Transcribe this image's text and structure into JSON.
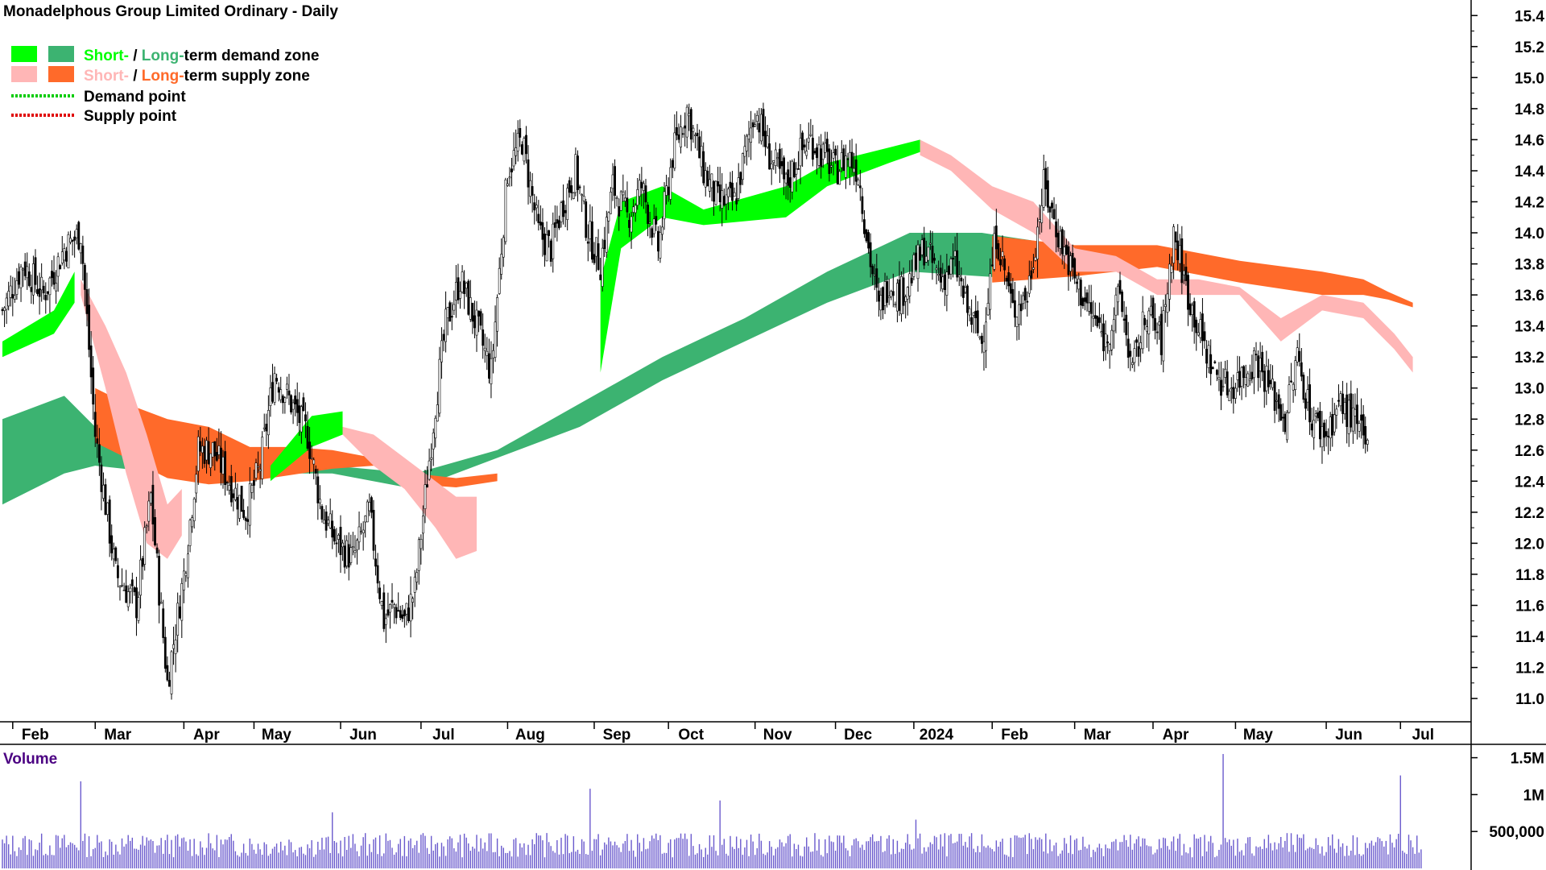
{
  "chart_data": {
    "type": "candlestick",
    "title": "Monadelphous Group Limited Ordinary - Daily",
    "y_axis": {
      "ylim": [
        10.85,
        15.5
      ],
      "ticks": [
        "15.4",
        "15.2",
        "15.0",
        "14.8",
        "14.6",
        "14.4",
        "14.2",
        "14.0",
        "13.8",
        "13.6",
        "13.4",
        "13.2",
        "13.0",
        "12.8",
        "12.6",
        "12.4",
        "12.2",
        "12.0",
        "11.8",
        "11.6",
        "11.4",
        "11.2",
        "11.0"
      ],
      "position": "right"
    },
    "x_axis": {
      "months": [
        "Feb",
        "Mar",
        "Apr",
        "May",
        "Jun",
        "Jul",
        "Aug",
        "Sep",
        "Oct",
        "Nov",
        "Dec",
        "2024",
        "Feb",
        "Mar",
        "Apr",
        "May",
        "Jun",
        "Jul"
      ],
      "month_days": [
        5,
        45,
        88,
        122,
        164,
        203,
        245,
        287,
        323,
        365,
        404,
        442,
        480,
        520,
        558,
        598,
        642,
        678
      ]
    },
    "legend": {
      "placement": "top-left",
      "short_word": "Short-",
      "slash": " / ",
      "long_word": "Long-",
      "demand_rest": "term demand zone",
      "supply_rest": "term supply zone",
      "demand_point": "Demand point",
      "supply_point": "Supply point"
    },
    "colors": {
      "short_demand": "#00ff00",
      "long_demand": "#3cb371",
      "short_supply": "#ffb6b6",
      "long_supply": "#ff6a2a",
      "candle": "#000000",
      "volume": "#6a5acd",
      "axis_text": "#000000",
      "volume_label": "#4b0082"
    },
    "price_series": {
      "days": [
        0,
        10,
        20,
        30,
        38,
        45,
        55,
        65,
        72,
        80,
        88,
        95,
        102,
        110,
        118,
        125,
        132,
        140,
        148,
        155,
        162,
        170,
        178,
        185,
        190,
        195,
        200,
        205,
        210,
        215,
        222,
        230,
        237,
        245,
        252,
        260,
        266,
        272,
        278,
        284,
        290,
        296,
        303,
        310,
        318,
        325,
        332,
        340,
        347,
        355,
        360,
        365,
        372,
        380,
        386,
        392,
        398,
        404,
        410,
        415,
        420,
        425,
        430,
        435,
        440,
        447,
        455,
        462,
        468,
        475,
        482,
        490,
        497,
        505,
        512,
        520,
        527,
        535,
        542,
        548,
        555,
        562,
        568,
        575,
        582,
        588,
        595,
        602,
        608,
        615,
        622,
        628,
        635,
        642,
        648,
        655,
        662,
        668,
        672,
        676,
        680,
        684,
        688
      ],
      "closes": [
        13.5,
        13.8,
        13.6,
        13.9,
        14.0,
        12.7,
        11.8,
        11.6,
        12.3,
        11.1,
        11.8,
        12.6,
        12.6,
        12.4,
        12.2,
        12.5,
        13.1,
        12.9,
        12.7,
        12.2,
        12.0,
        11.9,
        12.2,
        11.5,
        11.6,
        11.5,
        11.7,
        12.3,
        12.9,
        13.4,
        13.7,
        13.4,
        13.1,
        14.4,
        14.6,
        14.0,
        13.9,
        14.2,
        14.4,
        14.0,
        13.8,
        14.3,
        14.1,
        14.3,
        13.9,
        14.5,
        14.8,
        14.4,
        14.2,
        14.2,
        14.5,
        14.8,
        14.5,
        14.3,
        14.5,
        14.6,
        14.5,
        14.4,
        14.5,
        14.4,
        13.9,
        13.5,
        13.7,
        13.6,
        13.7,
        13.9,
        13.7,
        13.8,
        13.5,
        13.3,
        14.0,
        13.5,
        13.6,
        14.3,
        14.0,
        13.7,
        13.5,
        13.3,
        13.6,
        13.1,
        13.5,
        13.3,
        14.0,
        13.6,
        13.3,
        13.1,
        13.0,
        13.1,
        13.2,
        13.0,
        12.8,
        13.2,
        12.8,
        12.7,
        12.9,
        12.8,
        12.6
      ]
    },
    "demand_long": {
      "days": [
        0,
        30,
        45,
        80,
        120,
        160,
        200,
        240,
        280,
        320,
        360,
        400,
        440,
        475,
        500
      ],
      "upper": [
        12.8,
        12.95,
        12.75,
        12.65,
        12.6,
        12.5,
        12.45,
        12.6,
        12.9,
        13.2,
        13.45,
        13.75,
        14.0,
        14.0,
        13.95
      ],
      "lower": [
        12.25,
        12.45,
        12.5,
        12.45,
        12.45,
        12.45,
        12.35,
        12.55,
        12.75,
        13.05,
        13.3,
        13.55,
        13.75,
        13.72,
        13.7
      ]
    },
    "supply_long": {
      "days": [
        45,
        60,
        80,
        100,
        120,
        140,
        160,
        180,
        200,
        220,
        240,
        480,
        520,
        560,
        600,
        640,
        660,
        672,
        684
      ],
      "upper": [
        13.0,
        12.9,
        12.8,
        12.75,
        12.62,
        12.62,
        12.6,
        12.55,
        12.45,
        12.42,
        12.45,
        13.98,
        13.92,
        13.92,
        13.82,
        13.75,
        13.7,
        13.62,
        13.55
      ],
      "lower": [
        12.65,
        12.55,
        12.42,
        12.38,
        12.4,
        12.44,
        12.48,
        12.5,
        12.38,
        12.36,
        12.4,
        13.68,
        13.72,
        13.78,
        13.68,
        13.6,
        13.6,
        13.57,
        13.52
      ]
    },
    "demand_short": {
      "days": [
        0,
        25,
        35,
        130,
        150,
        165,
        290,
        300,
        320,
        340,
        380,
        400,
        430,
        445
      ],
      "upper": [
        13.3,
        13.5,
        13.75,
        12.5,
        12.82,
        12.85,
        13.7,
        14.2,
        14.3,
        14.15,
        14.3,
        14.45,
        14.55,
        14.6
      ],
      "lower": [
        13.2,
        13.35,
        13.55,
        12.4,
        12.62,
        12.7,
        13.1,
        13.9,
        14.1,
        14.05,
        14.1,
        14.3,
        14.45,
        14.52
      ]
    },
    "supply_short": {
      "days": [
        38,
        50,
        60,
        70,
        80,
        87,
        165,
        180,
        195,
        210,
        220,
        230,
        445,
        460,
        480,
        500,
        520,
        540,
        560,
        580,
        600,
        620,
        640,
        660,
        675,
        684
      ],
      "upper": [
        13.7,
        13.4,
        13.1,
        12.7,
        12.25,
        12.35,
        12.75,
        12.7,
        12.55,
        12.4,
        12.3,
        12.3,
        14.6,
        14.5,
        14.3,
        14.2,
        13.9,
        13.85,
        13.7,
        13.7,
        13.65,
        13.45,
        13.6,
        13.55,
        13.35,
        13.2
      ],
      "lower": [
        13.6,
        13.0,
        12.45,
        12.0,
        11.9,
        12.05,
        12.7,
        12.5,
        12.35,
        12.1,
        11.9,
        11.95,
        14.5,
        14.4,
        14.15,
        14.0,
        13.75,
        13.75,
        13.6,
        13.6,
        13.6,
        13.3,
        13.5,
        13.45,
        13.25,
        13.1
      ]
    },
    "volume_panel": {
      "label": "Volume",
      "ticks": [
        "1.5M",
        "1M",
        "500,000"
      ],
      "tick_values": [
        1500000,
        1000000,
        500000
      ],
      "max": 1550000,
      "spikes": [
        {
          "day": 38,
          "value": 1180000
        },
        {
          "day": 285,
          "value": 1080000
        },
        {
          "day": 348,
          "value": 920000
        },
        {
          "day": 592,
          "value": 1550000
        },
        {
          "day": 678,
          "value": 1260000
        },
        {
          "day": 160,
          "value": 760000
        },
        {
          "day": 443,
          "value": 660000
        }
      ],
      "base_range": [
        150000,
        480000
      ]
    }
  }
}
